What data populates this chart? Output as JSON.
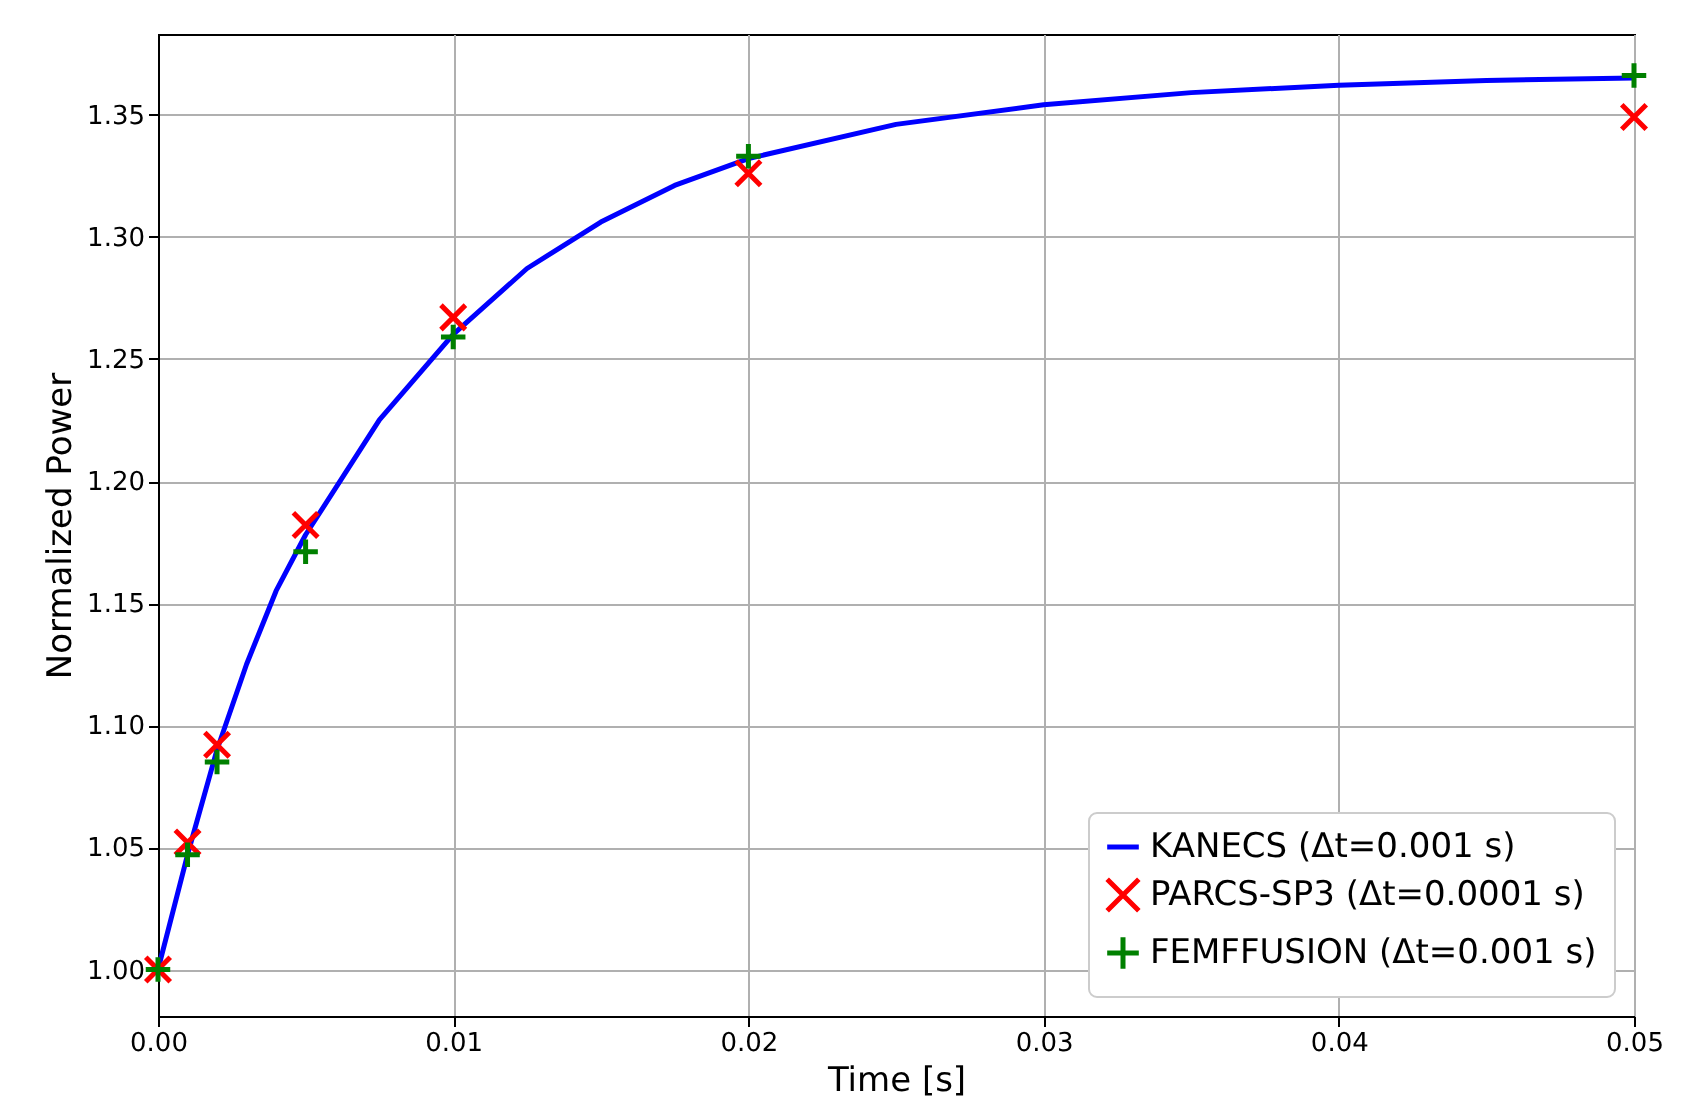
{
  "chart_data": {
    "type": "scatter",
    "xlabel": "Time [s]",
    "ylabel": "Normalized Power",
    "xlim": [
      0,
      0.05
    ],
    "xticks": [
      {
        "value": 0,
        "label": "0.00"
      },
      {
        "value": 0.01,
        "label": "0.01"
      },
      {
        "value": 0.02,
        "label": "0.02"
      },
      {
        "value": 0.03,
        "label": "0.03"
      },
      {
        "value": 0.04,
        "label": "0.04"
      },
      {
        "value": 0.05,
        "label": "0.05"
      }
    ],
    "ylim": [
      0.981,
      1.383
    ],
    "yticks": [
      {
        "value": 1,
        "label": "1.00"
      },
      {
        "value": 1.05,
        "label": "1.05"
      },
      {
        "value": 1.1,
        "label": "1.10"
      },
      {
        "value": 1.15,
        "label": "1.15"
      },
      {
        "value": 1.2,
        "label": "1.20"
      },
      {
        "value": 1.25,
        "label": "1.25"
      },
      {
        "value": 1.3,
        "label": "1.30"
      },
      {
        "value": 1.35,
        "label": "1.35"
      }
    ],
    "grid": true,
    "legend": "bottom right",
    "series": [
      {
        "name": "KANECS (Δt=0.001 s)",
        "type": "line",
        "marker": "none",
        "line_style": "solid",
        "color": "#0000ff",
        "x": [
          0,
          0.001,
          0.002,
          0.003,
          0.004,
          0.005,
          0.0075,
          0.01,
          0.0125,
          0.015,
          0.0175,
          0.02,
          0.025,
          0.03,
          0.035,
          0.04,
          0.045,
          0.05
        ],
        "values": [
          1.0,
          1.047,
          1.09,
          1.125,
          1.155,
          1.178,
          1.225,
          1.26,
          1.287,
          1.306,
          1.321,
          1.332,
          1.346,
          1.354,
          1.359,
          1.362,
          1.364,
          1.365
        ]
      },
      {
        "name": "PARCS-SP3 (Δt=0.0001 s)",
        "marker": "x",
        "color": "#ff0000",
        "x": [
          0,
          0.001,
          0.002,
          0.005,
          0.01,
          0.02,
          0.05
        ],
        "values": [
          1.0,
          1.052,
          1.092,
          1.182,
          1.267,
          1.326,
          1.349
        ]
      },
      {
        "name": "FEMFFUSION (Δt=0.001 s)",
        "marker": "cross",
        "color": "#008000",
        "x": [
          0,
          0.001,
          0.002,
          0.005,
          0.01,
          0.02,
          0.05
        ],
        "values": [
          1.0,
          1.047,
          1.085,
          1.171,
          1.259,
          1.333,
          1.366
        ]
      }
    ]
  }
}
